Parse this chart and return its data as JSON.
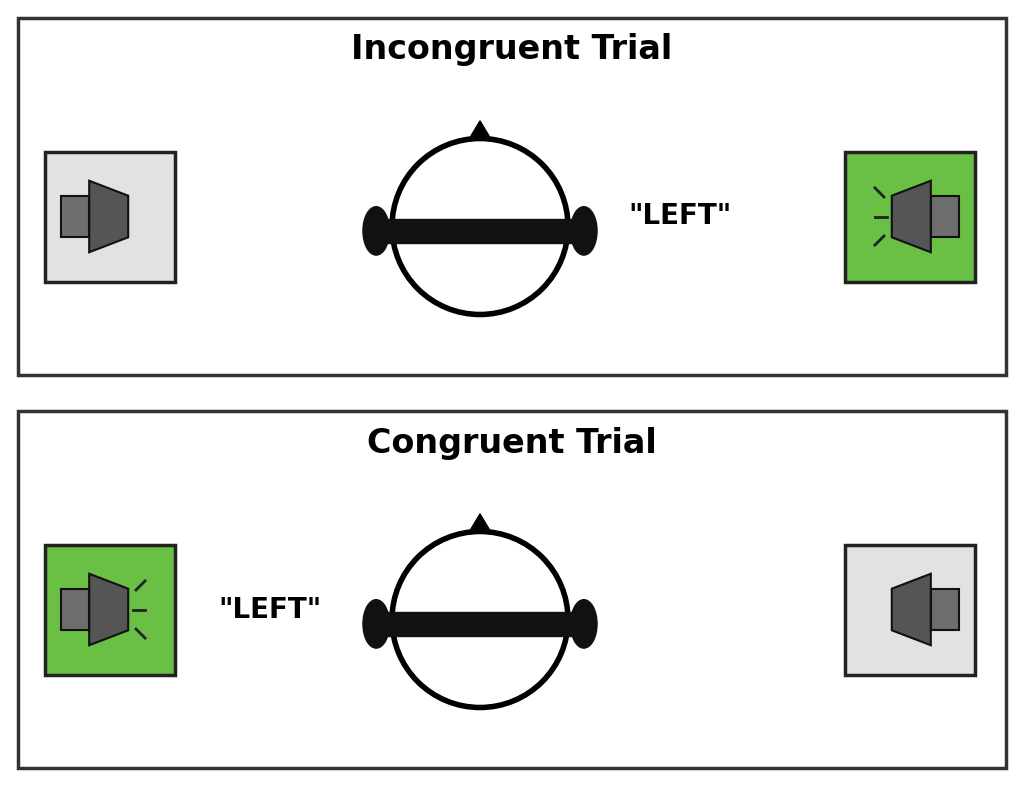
{
  "title_incongruent": "Incongruent Trial",
  "title_congruent": "Congruent Trial",
  "title_fontsize": 24,
  "title_fontweight": "bold",
  "label_left": "\"LEFT\"",
  "label_fontsize": 20,
  "label_fontweight": "bold",
  "bg_color": "#ffffff",
  "border_color": "#333333",
  "green_color": "#6abf45",
  "gray_bg_color": "#e2e2e2",
  "speaker_dark_color": "#555555",
  "speaker_med_color": "#6e6e6e",
  "head_circle_color": "#000000",
  "headphone_color": "#111111",
  "wave_color": "#222222"
}
